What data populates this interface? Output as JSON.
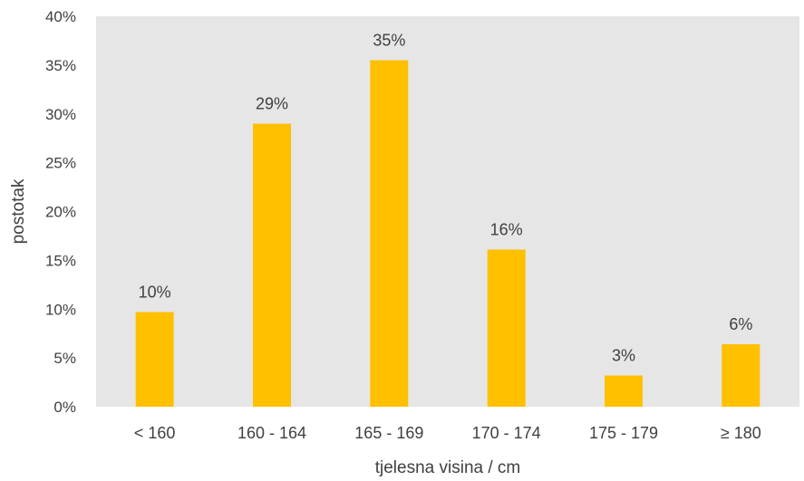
{
  "chart_data": {
    "type": "bar",
    "categories": [
      "< 160",
      "160 - 164",
      "165 - 169",
      "170 - 174",
      "175 - 179",
      "≥ 180"
    ],
    "values": [
      9.7,
      29.0,
      35.5,
      16.1,
      3.2,
      6.4
    ],
    "data_labels": [
      "10%",
      "29%",
      "35%",
      "16%",
      "3%",
      "6%"
    ],
    "title": "",
    "xlabel": "tjelesna visina / cm",
    "ylabel": "postotak",
    "ylim": [
      0,
      40
    ],
    "yticks": [
      0,
      5,
      10,
      15,
      20,
      25,
      30,
      35,
      40
    ],
    "ytick_labels": [
      "0%",
      "5%",
      "10%",
      "15%",
      "20%",
      "25%",
      "30%",
      "35%",
      "40%"
    ],
    "grid": false,
    "legend": "none",
    "colors": {
      "bar": "#FFC000",
      "plot_background": "#E7E6E6",
      "text": "#404040"
    }
  }
}
